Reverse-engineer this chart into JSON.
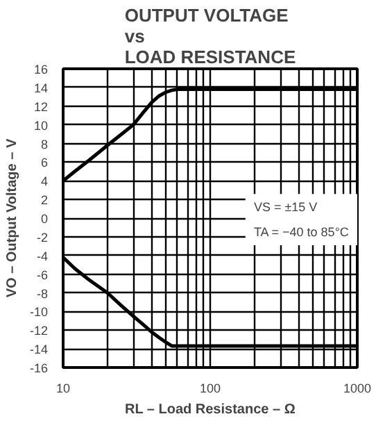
{
  "chart_data": {
    "type": "line",
    "title": "OUTPUT VOLTAGE\nvs\nLOAD RESISTANCE",
    "xlabel": "RL – Load Resistance – Ω",
    "ylabel": "VO – Output Voltage – V",
    "log": "x",
    "xlim": [
      10,
      1000
    ],
    "xticks": [
      10,
      100,
      1000
    ],
    "ylim": [
      -16,
      16
    ],
    "yticks": [
      -16,
      -14,
      -12,
      -10,
      -8,
      -6,
      -4,
      -2,
      0,
      2,
      4,
      6,
      8,
      10,
      12,
      14,
      16
    ],
    "grid": true,
    "line_style": "solid",
    "annotations": [
      "VS = ±15 V",
      "TA = −40 to 85°C"
    ],
    "series": [
      {
        "color": "#000000",
        "x": [
          10,
          12,
          15,
          20,
          25,
          30,
          35,
          40,
          45,
          50,
          55,
          60,
          70,
          1000
        ],
        "values": [
          4,
          5,
          6.2,
          7.8,
          9,
          10,
          11.3,
          12.4,
          13.1,
          13.5,
          13.7,
          13.8,
          13.8,
          13.8
        ]
      },
      {
        "color": "#000000",
        "x": [
          10,
          12,
          15,
          20,
          25,
          30,
          35,
          40,
          45,
          50,
          55,
          60,
          1000
        ],
        "values": [
          -4.2,
          -5.4,
          -6.6,
          -8,
          -9.4,
          -10.5,
          -11.4,
          -12.2,
          -12.8,
          -13.3,
          -13.7,
          -13.7,
          -13.7
        ]
      }
    ]
  }
}
